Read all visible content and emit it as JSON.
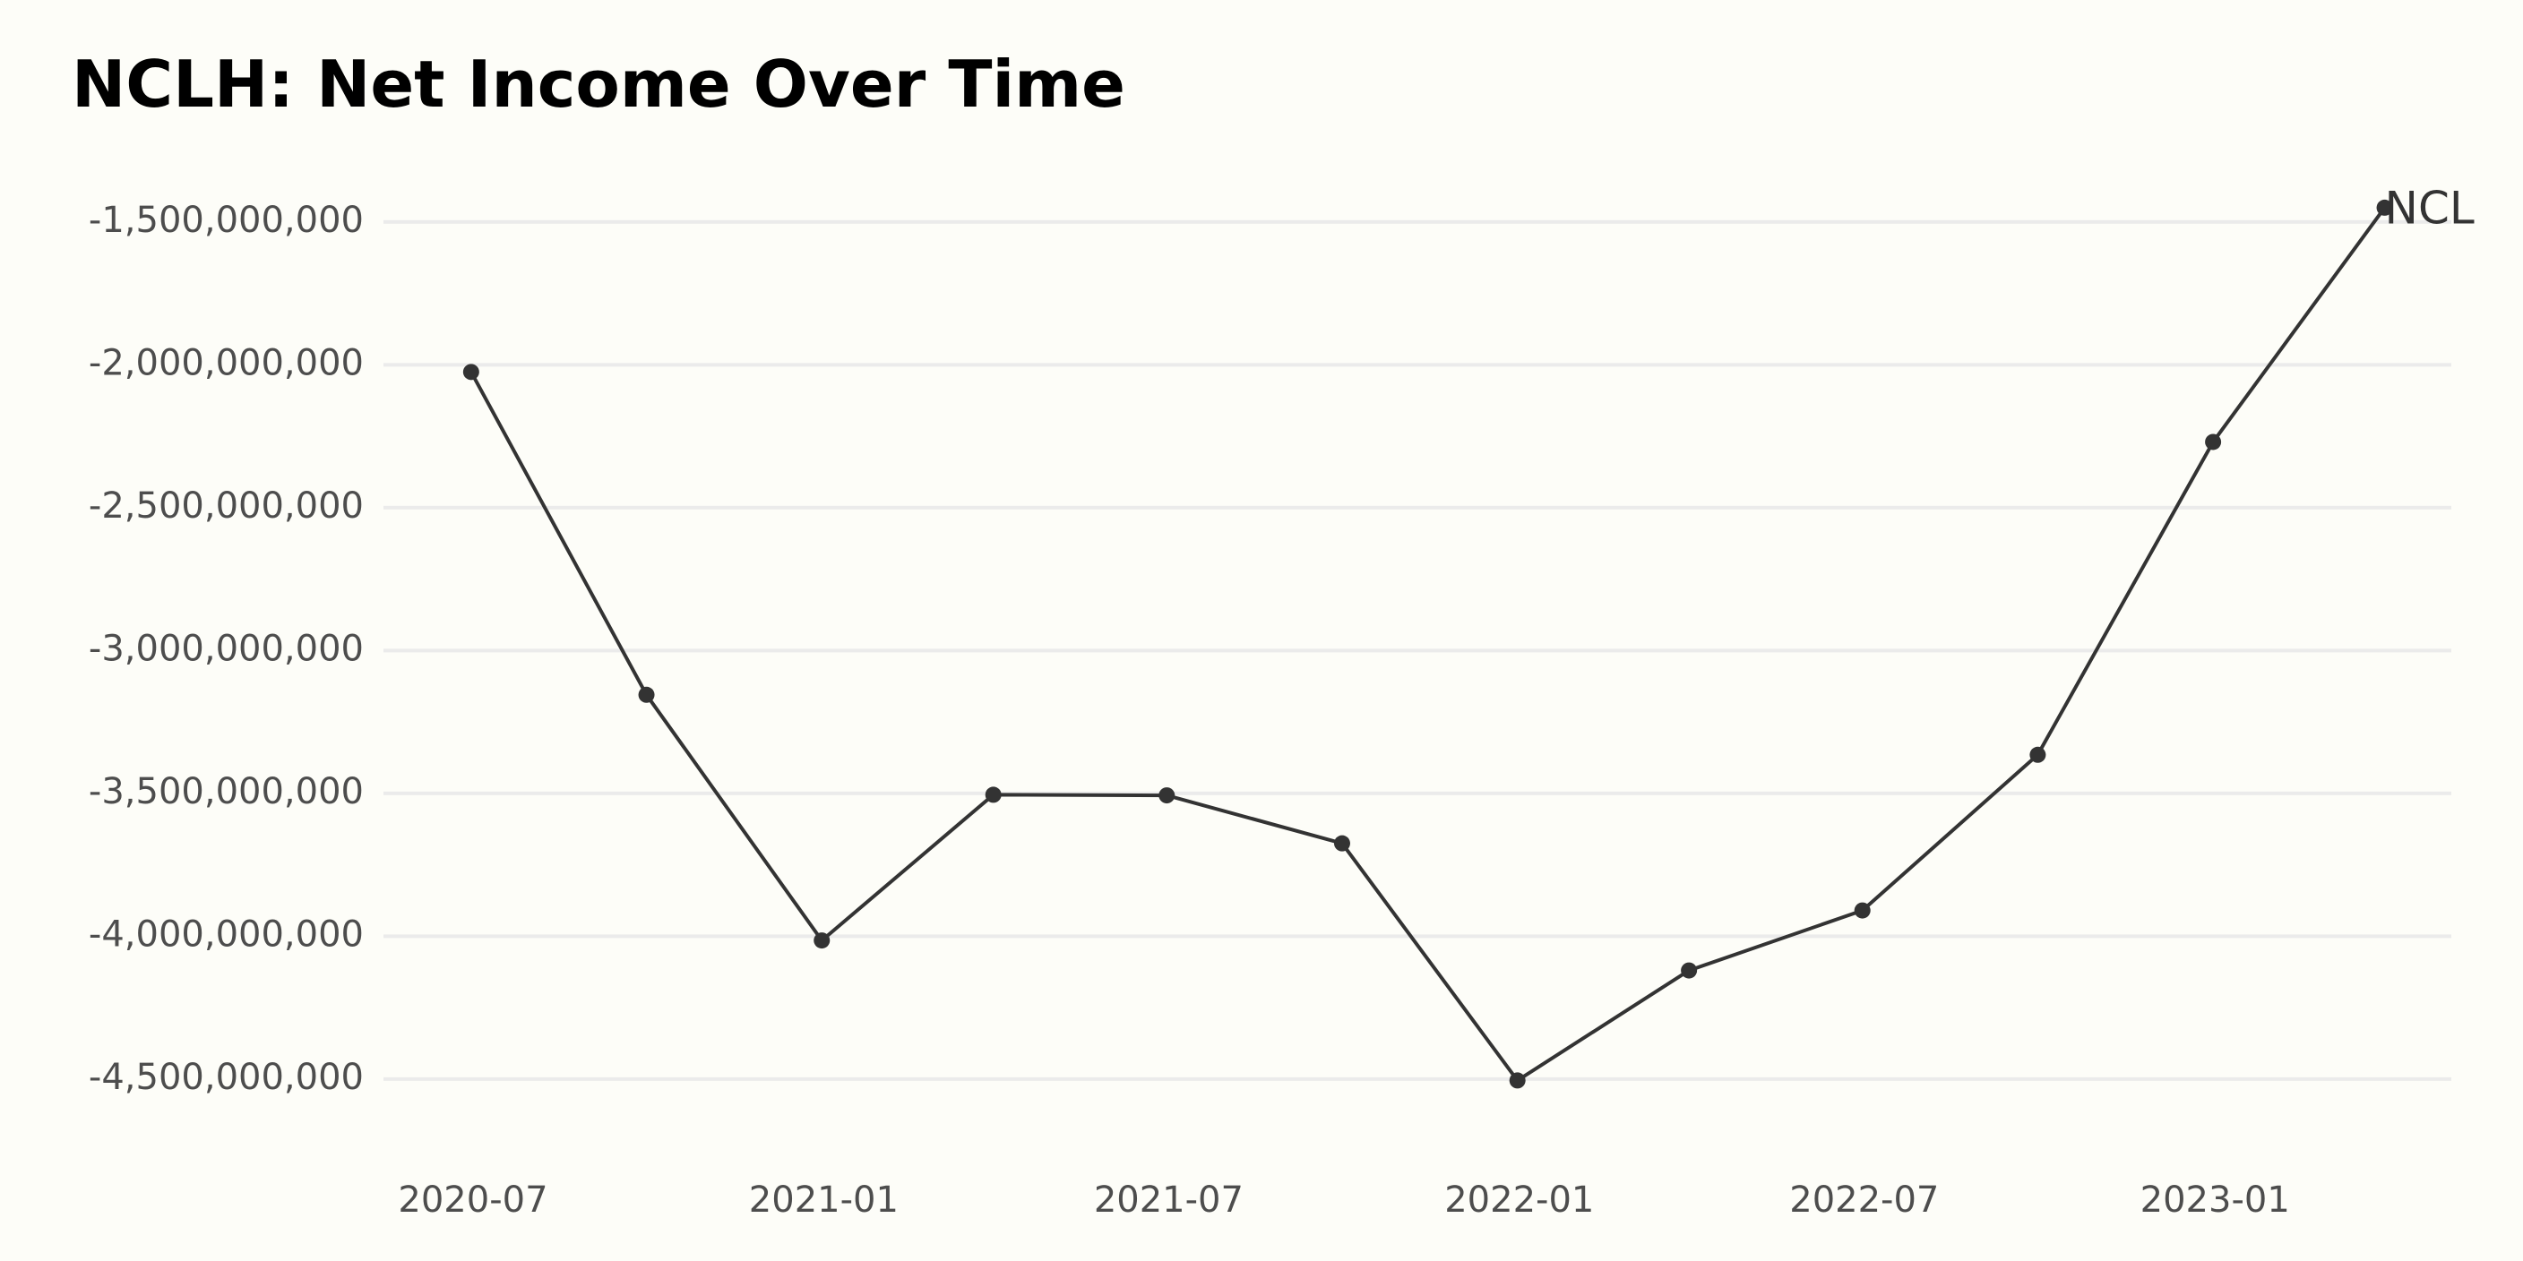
{
  "chart_data": {
    "type": "line",
    "title": "NCLH: Net Income Over Time",
    "xlabel": "",
    "ylabel": "",
    "x": [
      "2020-06-30",
      "2020-09-30",
      "2020-12-31",
      "2021-03-31",
      "2021-06-30",
      "2021-09-30",
      "2021-12-31",
      "2022-03-31",
      "2022-06-30",
      "2022-09-30",
      "2022-12-31",
      "2023-03-31"
    ],
    "series": [
      {
        "name": "NCL",
        "values": [
          -2025000000,
          -3155000000,
          -4015000000,
          -3505000000,
          -3507000000,
          -3675000000,
          -4505000000,
          -4120000000,
          -3910000000,
          -3365000000,
          -2270000000,
          -1450000000
        ]
      }
    ],
    "ylim": [
      -4720000000,
      -1350000000
    ],
    "xlim": [
      "2020-05-15",
      "2023-05-05"
    ],
    "y_ticks": [
      -1500000000,
      -2000000000,
      -2500000000,
      -3000000000,
      -3500000000,
      -4000000000,
      -4500000000
    ],
    "y_tick_labels": [
      "-1,500,000,000",
      "-2,000,000,000",
      "-2,500,000,000",
      "-3,000,000,000",
      "-3,500,000,000",
      "-4,000,000,000",
      "-4,500,000,000"
    ],
    "x_ticks": [
      "2020-07-01",
      "2021-01-01",
      "2021-07-01",
      "2022-01-01",
      "2022-07-01",
      "2023-01-01"
    ],
    "x_tick_labels": [
      "2020-07",
      "2021-01",
      "2021-07",
      "2022-01",
      "2022-07",
      "2023-01"
    ],
    "grid": "horizontal",
    "legend": "none",
    "colors": {
      "line": "#333333",
      "grid": "#ebebeb",
      "tick_text": "#4d4d4d",
      "background": "#fdfdf8"
    }
  }
}
